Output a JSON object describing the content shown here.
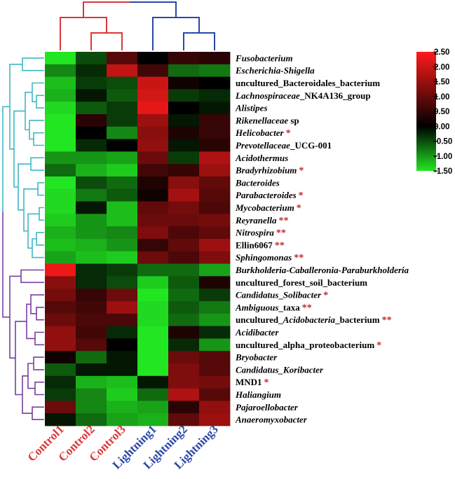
{
  "chart_data": {
    "type": "heatmap",
    "columns": [
      {
        "label": "Control1",
        "group": "control"
      },
      {
        "label": "Control2",
        "group": "control"
      },
      {
        "label": "Control3",
        "group": "control"
      },
      {
        "label": "Lightning1",
        "group": "lightning"
      },
      {
        "label": "Lightning2",
        "group": "lightning"
      },
      {
        "label": "Lightning3",
        "group": "lightning"
      }
    ],
    "rows": [
      {
        "segments": [
          {
            "t": "Fusobacterium",
            "i": true
          }
        ],
        "sig": "",
        "cluster": "top",
        "values": [
          -2.0,
          -0.4,
          0.7,
          0.0,
          0.4,
          0.3
        ]
      },
      {
        "segments": [
          {
            "t": "Escherichia-Shigella",
            "i": true
          }
        ],
        "sig": "",
        "cluster": "top",
        "values": [
          -0.8,
          -0.2,
          1.8,
          0.5,
          -0.6,
          -0.7
        ]
      },
      {
        "segments": [
          {
            "t": "uncultured_Bacteroidales_bacterium",
            "i": false
          }
        ],
        "sig": "",
        "cluster": "top",
        "values": [
          -1.2,
          -0.3,
          -0.4,
          1.9,
          0.1,
          0.0
        ]
      },
      {
        "segments": [
          {
            "t": "Lachnospiraceae",
            "i": true
          },
          {
            "t": "_NK4A136_group",
            "i": false
          }
        ],
        "sig": "",
        "cluster": "top",
        "values": [
          -1.1,
          -0.1,
          -0.5,
          2.0,
          -0.3,
          -0.2
        ]
      },
      {
        "segments": [
          {
            "t": "Alistipes",
            "i": true
          }
        ],
        "sig": "",
        "cluster": "top",
        "values": [
          -1.4,
          -0.5,
          -0.3,
          2.2,
          0.0,
          -0.1
        ]
      },
      {
        "segments": [
          {
            "t": "Rikenellaceae",
            "i": true
          },
          {
            "t": " sp",
            "i": false
          }
        ],
        "sig": "",
        "cluster": "top",
        "values": [
          -1.6,
          0.3,
          -0.3,
          1.4,
          -0.1,
          0.4
        ]
      },
      {
        "segments": [
          {
            "t": "Helicobacter",
            "i": true
          }
        ],
        "sig": "*",
        "cluster": "top",
        "values": [
          -1.5,
          0.0,
          -0.8,
          1.2,
          0.2,
          0.4
        ]
      },
      {
        "segments": [
          {
            "t": "Prevotellaceae",
            "i": true
          },
          {
            "t": "_UCG-001",
            "i": false
          }
        ],
        "sig": "",
        "cluster": "top",
        "values": [
          -1.5,
          -0.2,
          0.0,
          1.3,
          -0.1,
          0.3
        ]
      },
      {
        "segments": [
          {
            "t": "Acidothermus",
            "i": true
          }
        ],
        "sig": "",
        "cluster": "top",
        "values": [
          -0.9,
          -0.9,
          -1.0,
          0.9,
          -0.3,
          1.6
        ]
      },
      {
        "segments": [
          {
            "t": "Bradyrhizobium",
            "i": true
          }
        ],
        "sig": "*",
        "cluster": "top",
        "values": [
          -0.6,
          -1.1,
          -1.3,
          0.5,
          0.4,
          1.4
        ]
      },
      {
        "segments": [
          {
            "t": "Bacteroides",
            "i": true
          }
        ],
        "sig": "",
        "cluster": "top",
        "values": [
          -1.7,
          -0.4,
          -0.6,
          0.2,
          1.2,
          0.8
        ]
      },
      {
        "segments": [
          {
            "t": "Parabacteroides",
            "i": true
          }
        ],
        "sig": "*",
        "cluster": "top",
        "values": [
          -1.4,
          -0.7,
          -0.5,
          0.1,
          1.5,
          0.7
        ]
      },
      {
        "segments": [
          {
            "t": "Mycobacterium",
            "i": true
          }
        ],
        "sig": "*",
        "cluster": "top",
        "values": [
          -1.4,
          -0.1,
          -1.2,
          0.8,
          1.0,
          0.6
        ]
      },
      {
        "segments": [
          {
            "t": "Reyranella",
            "i": true
          }
        ],
        "sig": "**",
        "cluster": "top",
        "values": [
          -1.3,
          -0.9,
          -1.2,
          0.9,
          0.9,
          1.0
        ]
      },
      {
        "segments": [
          {
            "t": "Nitrospira",
            "i": true
          }
        ],
        "sig": "**",
        "cluster": "top",
        "values": [
          -1.1,
          -0.9,
          -0.8,
          1.1,
          0.6,
          0.8
        ]
      },
      {
        "segments": [
          {
            "t": "Ellin6067",
            "i": false
          }
        ],
        "sig": "**",
        "cluster": "top",
        "values": [
          -1.2,
          -1.1,
          -0.9,
          0.4,
          0.8,
          1.4
        ]
      },
      {
        "segments": [
          {
            "t": "Sphingomonas",
            "i": true
          }
        ],
        "sig": "**",
        "cluster": "top",
        "values": [
          -1.0,
          -1.2,
          -1.3,
          0.9,
          0.6,
          1.1
        ]
      },
      {
        "segments": [
          {
            "t": "Burkholderia-Caballeronia-Paraburkholderia",
            "i": true
          }
        ],
        "sig": "",
        "cluster": "bottom",
        "values": [
          2.3,
          -0.2,
          -0.3,
          -0.6,
          -0.6,
          -1.0
        ]
      },
      {
        "segments": [
          {
            "t": "uncultured_forest_soil_bacterium",
            "i": false
          }
        ],
        "sig": "",
        "cluster": "bottom",
        "values": [
          1.2,
          -0.2,
          -0.4,
          -1.3,
          -0.5,
          0.2
        ]
      },
      {
        "segments": [
          {
            "t": "Candidatus",
            "i": true
          },
          {
            "t": "_",
            "i": false
          },
          {
            "t": "Solibacter",
            "i": true
          }
        ],
        "sig": "*",
        "cluster": "bottom",
        "values": [
          1.0,
          0.4,
          0.9,
          -1.6,
          -0.6,
          -0.3
        ]
      },
      {
        "segments": [
          {
            "t": "Ambiguous",
            "i": true
          },
          {
            "t": "_taxa",
            "i": false
          }
        ],
        "sig": "**",
        "cluster": "bottom",
        "values": [
          0.7,
          0.5,
          1.4,
          -1.4,
          -0.5,
          -0.7
        ]
      },
      {
        "segments": [
          {
            "t": "uncultured_",
            "i": false
          },
          {
            "t": "Acidobacteria",
            "i": true
          },
          {
            "t": "_bacterium",
            "i": false
          }
        ],
        "sig": "**",
        "cluster": "bottom",
        "values": [
          0.9,
          0.6,
          0.6,
          -1.4,
          -0.6,
          -0.9
        ]
      },
      {
        "segments": [
          {
            "t": "Acidibacter",
            "i": true
          }
        ],
        "sig": "",
        "cluster": "bottom",
        "values": [
          1.3,
          0.5,
          -0.2,
          -1.8,
          0.2,
          -0.2
        ]
      },
      {
        "segments": [
          {
            "t": "uncultured_alpha_proteobacterium",
            "i": false
          }
        ],
        "sig": "*",
        "cluster": "bottom",
        "values": [
          1.3,
          0.7,
          0.0,
          -1.7,
          -0.2,
          -0.9
        ]
      },
      {
        "segments": [
          {
            "t": "Bryobacter",
            "i": true
          }
        ],
        "sig": "",
        "cluster": "bottom",
        "values": [
          0.1,
          -0.6,
          -0.1,
          -1.8,
          0.9,
          0.7
        ]
      },
      {
        "segments": [
          {
            "t": "Candidatus_Koribacter",
            "i": true
          }
        ],
        "sig": "",
        "cluster": "bottom",
        "values": [
          -0.5,
          -0.1,
          -0.1,
          -1.7,
          1.1,
          0.7
        ]
      },
      {
        "segments": [
          {
            "t": "MND1",
            "i": false
          }
        ],
        "sig": "*",
        "cluster": "bottom",
        "values": [
          -0.2,
          -1.1,
          -1.2,
          -0.1,
          1.1,
          1.0
        ]
      },
      {
        "segments": [
          {
            "t": "Haliangium",
            "i": true
          }
        ],
        "sig": "",
        "cluster": "bottom",
        "values": [
          -0.3,
          -0.8,
          -1.3,
          -0.6,
          1.6,
          0.7
        ]
      },
      {
        "segments": [
          {
            "t": "Pajaroellobacter",
            "i": true
          }
        ],
        "sig": "",
        "cluster": "bottom",
        "values": [
          0.9,
          -0.8,
          -1.1,
          -1.0,
          0.3,
          1.3
        ]
      },
      {
        "segments": [
          {
            "t": "Anaeromyxobacter",
            "i": true
          }
        ],
        "sig": "",
        "cluster": "bottom",
        "values": [
          -0.1,
          -0.6,
          -1.0,
          -1.1,
          0.8,
          1.4
        ]
      }
    ],
    "color_scale": {
      "min": -1.5,
      "mid": 0.0,
      "max": 2.5,
      "low_color": "#22e622",
      "mid_color": "#000000",
      "high_color": "#ff1a1a",
      "ticks": [
        "2.50",
        "2.00",
        "1.50",
        "1.00",
        "0.50",
        "0.00",
        "-0.50",
        "-1.00",
        "-1.50"
      ]
    },
    "column_dendrogram": {
      "merge_order": [
        [
          "Control2",
          "Control3"
        ],
        [
          "Lightning2",
          "Lightning3"
        ],
        [
          "Control1",
          "Control2+Control3"
        ],
        [
          "Lightning1",
          "Lightning2+Lightning3"
        ],
        [
          "control-cluster",
          "lightning-cluster"
        ]
      ],
      "colors": {
        "control": "#d9383a",
        "lightning": "#2b47a8"
      }
    },
    "row_dendrogram": {
      "clusters": [
        "top",
        "bottom"
      ],
      "colors": {
        "top": "#3fb8c4",
        "bottom": "#7a3f9e"
      }
    },
    "significance_color": "#c0272d"
  }
}
